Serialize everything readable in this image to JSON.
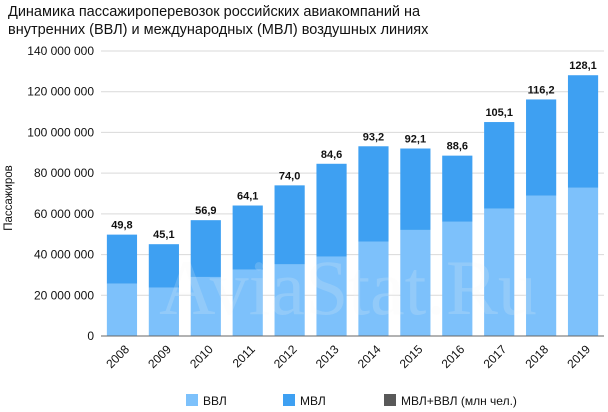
{
  "chart_data": {
    "type": "bar",
    "stacked": true,
    "title_lines": [
      "Динамика пассажироперевозок российских авиакомпаний на",
      "внутренних (ВВЛ) и международных (МВЛ) воздушных линиях"
    ],
    "ylabel": "Пассажиров",
    "ylim": [
      0,
      140000000
    ],
    "yticks": [
      0,
      20000000,
      40000000,
      60000000,
      80000000,
      100000000,
      120000000,
      140000000
    ],
    "ytick_labels": [
      "0",
      "20 000 000",
      "40 000 000",
      "60 000 000",
      "80 000 000",
      "100 000 000",
      "120 000 000",
      "140 000 000"
    ],
    "categories": [
      "2008",
      "2009",
      "2010",
      "2011",
      "2012",
      "2013",
      "2014",
      "2015",
      "2016",
      "2017",
      "2018",
      "2019"
    ],
    "series": [
      {
        "name": "ВВЛ",
        "color": "#7dc1fb",
        "values": [
          25700000,
          23800000,
          29000000,
          32600000,
          35200000,
          39000000,
          46300000,
          52100000,
          56100000,
          62600000,
          68900000,
          72800000
        ]
      },
      {
        "name": "МВЛ",
        "color": "#3ea0f2",
        "values": [
          24100000,
          21300000,
          27900000,
          31500000,
          38800000,
          45600000,
          46900000,
          40000000,
          32500000,
          42500000,
          47300000,
          55300000
        ]
      }
    ],
    "totals_series": {
      "name": "МВЛ+ВВЛ (млн чел.)",
      "color": "#595959"
    },
    "data_labels": [
      "49,8",
      "45,1",
      "56,9",
      "64,1",
      "74,0",
      "84,6",
      "93,2",
      "92,1",
      "88,6",
      "105,1",
      "116,2",
      "128,1"
    ],
    "grid": "horizontal",
    "legend_position": "bottom",
    "watermark": "AviaStat.Ru"
  }
}
